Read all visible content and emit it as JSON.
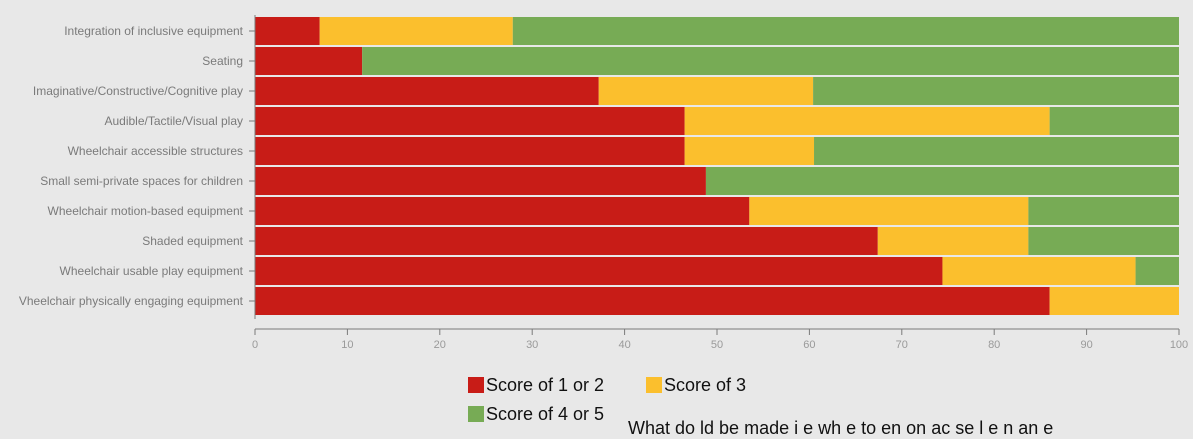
{
  "chart_data": {
    "type": "bar",
    "orientation": "horizontal",
    "stacked": true,
    "categories": [
      "Integration of inclusive equipment",
      "Seating",
      "Imaginative/Constructive/Cognitive play",
      "Audible/Tactile/Visual play",
      "Wheelchair accessible structures",
      "Small semi-private spaces for children",
      "Wheelchair motion-based equipment",
      "Shaded equipment",
      "Wheelchair usable play equipment",
      "Vheelchair physically engaging equipment"
    ],
    "series": [
      {
        "name": "Score of 1 or 2",
        "color": "#c81c17",
        "values": [
          7,
          11.6,
          37.2,
          46.5,
          46.5,
          48.8,
          53.5,
          67.4,
          74.4,
          86
        ]
      },
      {
        "name": "Score of 3",
        "color": "#fbbf2d",
        "values": [
          20.9,
          0,
          23.2,
          39.5,
          14,
          0,
          30.2,
          16.3,
          20.9,
          14
        ]
      },
      {
        "name": "Score of 4 or 5",
        "color": "#77ab55",
        "values": [
          72.1,
          88.4,
          39.6,
          14,
          39.5,
          51.2,
          16.3,
          16.3,
          4.7,
          0
        ]
      }
    ],
    "xlim": [
      0,
      100
    ],
    "xticks": [
      "0",
      "10",
      "20",
      "30",
      "40",
      "50",
      "60",
      "70",
      "80",
      "90",
      "100"
    ],
    "xlabel": "",
    "ylabel": "",
    "grid": false,
    "legend_position": "bottom-center"
  },
  "footer": {
    "partial_text": "What do ld be made i e wh e to en on ac se l e n an e"
  }
}
